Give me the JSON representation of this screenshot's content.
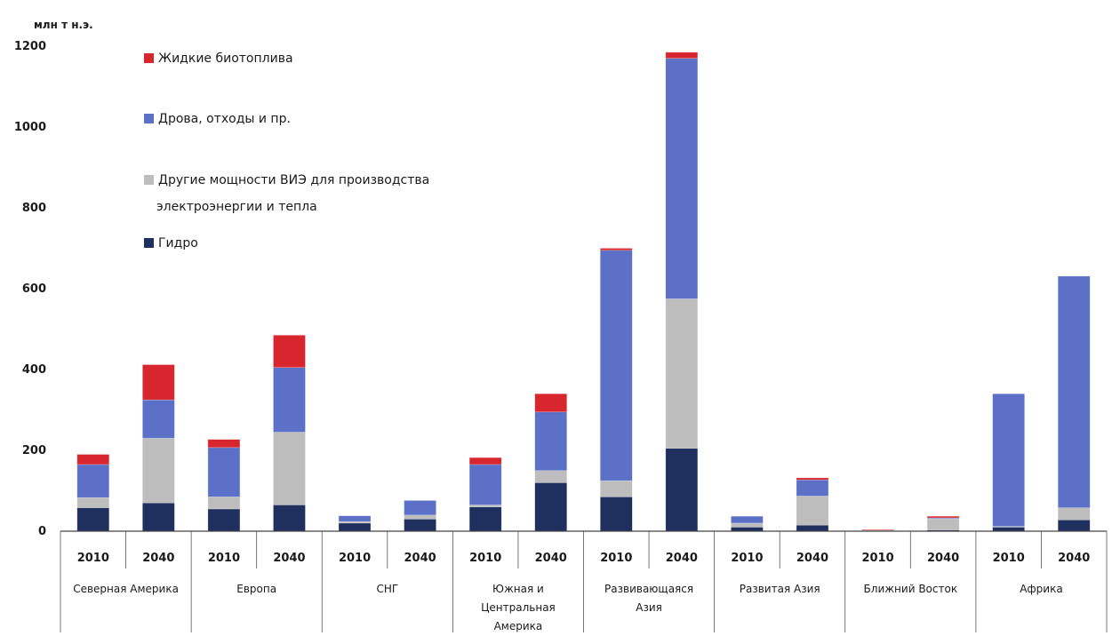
{
  "chart_data": {
    "type": "bar",
    "stacked": true,
    "unit_label": "млн т н.э.",
    "ylim": [
      0,
      1200
    ],
    "yticks": [
      0,
      200,
      400,
      600,
      800,
      1000,
      1200
    ],
    "grid": false,
    "legend_position": "top-left inside",
    "groups": [
      {
        "label_lines": [
          "Северная Америка"
        ]
      },
      {
        "label_lines": [
          "Европа"
        ]
      },
      {
        "label_lines": [
          "СНГ"
        ]
      },
      {
        "label_lines": [
          "Южная и",
          "Центральная",
          "Америка"
        ]
      },
      {
        "label_lines": [
          "Развивающаяся",
          "Азия"
        ]
      },
      {
        "label_lines": [
          "Развитая Азия"
        ]
      },
      {
        "label_lines": [
          "Ближний Восток"
        ]
      },
      {
        "label_lines": [
          "Африка"
        ]
      }
    ],
    "categories": [
      "2010",
      "2040",
      "2010",
      "2040",
      "2010",
      "2040",
      "2010",
      "2040",
      "2010",
      "2040",
      "2010",
      "2040",
      "2010",
      "2040",
      "2010",
      "2040"
    ],
    "series": [
      {
        "key": "hydro",
        "legend_lines": [
          "Гидро"
        ],
        "color": "#1f2f5e",
        "values": [
          58,
          70,
          55,
          65,
          20,
          30,
          60,
          120,
          85,
          205,
          10,
          15,
          2,
          3,
          10,
          28
        ]
      },
      {
        "key": "other_res",
        "legend_lines": [
          "Другие мощности ВИЭ для производства",
          "электроэнергии и тепла"
        ],
        "color": "#bdbdbd",
        "values": [
          25,
          160,
          30,
          180,
          4,
          10,
          5,
          30,
          40,
          370,
          10,
          72,
          1,
          28,
          2,
          30
        ]
      },
      {
        "key": "wood",
        "legend_lines": [
          "Дрова, отходы и пр."
        ],
        "color": "#5b70c6",
        "values": [
          82,
          95,
          122,
          160,
          14,
          36,
          100,
          145,
          570,
          595,
          17,
          40,
          0,
          2,
          328,
          573
        ]
      },
      {
        "key": "biofuels",
        "legend_lines": [
          "Жидкие биотоплива"
        ],
        "color": "#d8262f",
        "values": [
          25,
          87,
          20,
          80,
          0,
          0,
          17,
          45,
          5,
          15,
          0,
          5,
          1,
          4,
          0,
          0
        ]
      }
    ]
  }
}
